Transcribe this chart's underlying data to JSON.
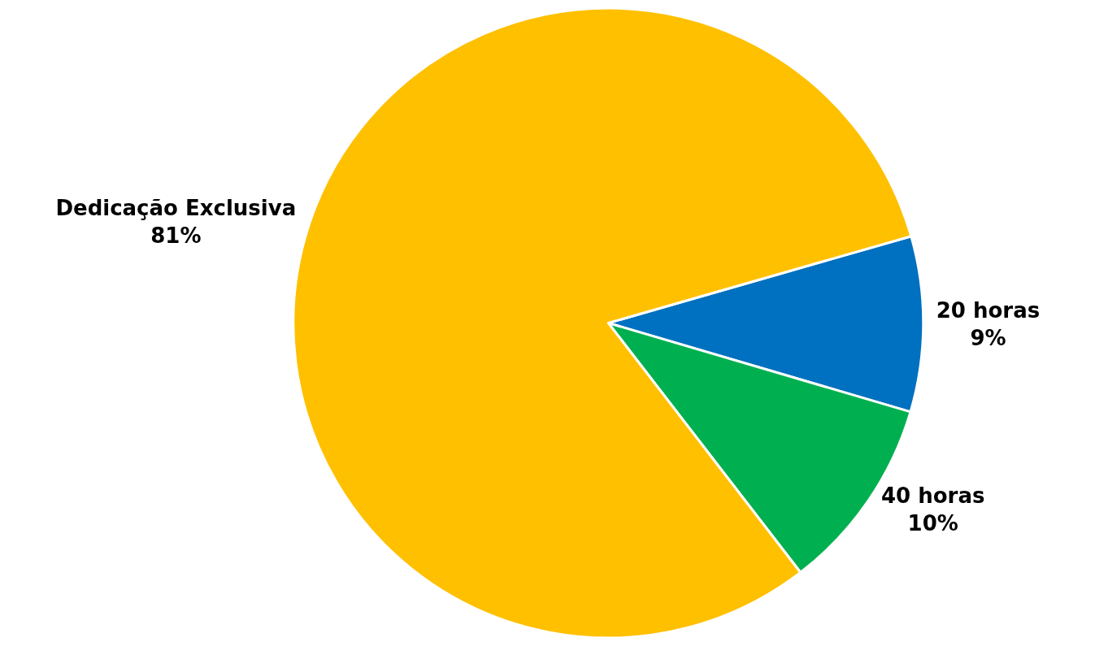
{
  "chart_data": {
    "type": "pie",
    "categories": [
      "20 horas",
      "40 horas",
      "Dedicação Exclusiva"
    ],
    "values": [
      9,
      10,
      81
    ],
    "colors": [
      "#0070c0",
      "#00b050",
      "#ffc000"
    ],
    "value_labels": [
      "9%",
      "10%",
      "81%"
    ],
    "legend": false
  }
}
